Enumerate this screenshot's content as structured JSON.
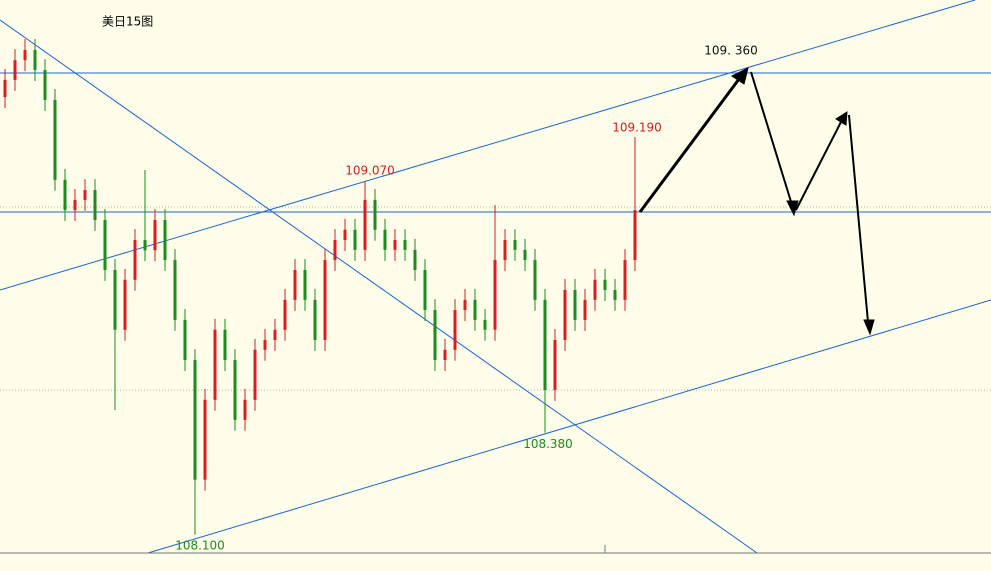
{
  "chart_data": {
    "type": "candlestick",
    "title": "美日15图",
    "ylim": [
      108.05,
      109.566
    ],
    "up_color": "#d42020",
    "down_color": "#1f8a1f",
    "open": [
      109.3,
      109.347,
      109.401,
      109.429,
      109.374,
      109.292,
      109.073,
      108.99,
      109.018,
      109.045,
      108.963,
      108.826,
      108.662,
      108.799,
      108.908,
      108.88,
      108.963,
      108.853,
      108.689,
      108.579,
      108.251,
      108.47,
      108.662,
      108.579,
      108.415,
      108.47,
      108.607,
      108.634,
      108.662,
      108.744,
      108.826,
      108.744,
      108.634,
      108.853,
      108.908,
      108.936,
      108.881,
      109.018,
      108.936,
      108.881,
      108.908,
      108.881,
      108.826,
      108.716,
      108.579,
      108.607,
      108.716,
      108.744,
      108.689,
      108.662,
      108.853,
      108.908,
      108.881,
      108.853,
      108.744,
      108.497,
      108.634,
      108.771,
      108.689,
      108.744,
      108.799,
      108.771,
      108.744,
      108.853
    ],
    "high": [
      109.377,
      109.431,
      109.459,
      109.459,
      109.404,
      109.322,
      109.103,
      109.048,
      109.075,
      109.075,
      108.993,
      108.856,
      108.829,
      108.938,
      109.1,
      108.993,
      108.993,
      108.883,
      108.719,
      108.609,
      108.5,
      108.692,
      108.692,
      108.609,
      108.5,
      108.637,
      108.664,
      108.692,
      108.774,
      108.856,
      108.856,
      108.774,
      108.883,
      108.938,
      108.966,
      108.966,
      109.07,
      109.048,
      108.966,
      108.938,
      108.938,
      108.911,
      108.856,
      108.746,
      108.637,
      108.746,
      108.774,
      108.774,
      108.719,
      109.004,
      108.938,
      108.938,
      108.911,
      108.883,
      108.774,
      108.664,
      108.801,
      108.801,
      108.774,
      108.829,
      108.829,
      108.801,
      108.883,
      109.19
    ],
    "low": [
      109.27,
      109.317,
      109.371,
      109.344,
      109.262,
      109.043,
      108.96,
      108.96,
      108.988,
      108.933,
      108.796,
      108.442,
      108.632,
      108.769,
      108.85,
      108.85,
      108.823,
      108.659,
      108.549,
      108.1,
      108.221,
      108.44,
      108.549,
      108.385,
      108.385,
      108.44,
      108.577,
      108.604,
      108.632,
      108.714,
      108.714,
      108.604,
      108.604,
      108.823,
      108.878,
      108.851,
      108.851,
      108.906,
      108.851,
      108.851,
      108.851,
      108.796,
      108.686,
      108.549,
      108.549,
      108.577,
      108.686,
      108.659,
      108.632,
      108.632,
      108.823,
      108.851,
      108.823,
      108.714,
      108.38,
      108.467,
      108.604,
      108.659,
      108.659,
      108.714,
      108.741,
      108.714,
      108.714,
      108.823
    ],
    "close": [
      109.347,
      109.401,
      109.429,
      109.374,
      109.292,
      109.073,
      108.99,
      109.018,
      109.045,
      108.963,
      108.826,
      108.662,
      108.799,
      108.908,
      108.88,
      108.963,
      108.853,
      108.689,
      108.579,
      108.251,
      108.47,
      108.662,
      108.579,
      108.415,
      108.47,
      108.607,
      108.634,
      108.662,
      108.744,
      108.826,
      108.744,
      108.634,
      108.853,
      108.908,
      108.936,
      108.881,
      109.018,
      108.936,
      108.881,
      108.908,
      108.881,
      108.826,
      108.716,
      108.579,
      108.607,
      108.716,
      108.744,
      108.689,
      108.662,
      108.853,
      108.908,
      108.881,
      108.853,
      108.744,
      108.497,
      108.634,
      108.771,
      108.689,
      108.744,
      108.799,
      108.771,
      108.744,
      108.853,
      108.99
    ],
    "annotations": [
      {
        "label": "108.100",
        "value": 108.1,
        "color": "#1f8a1f"
      },
      {
        "label": "109.070",
        "value": 109.07,
        "color": "#d42020"
      },
      {
        "label": "108.380",
        "value": 108.38,
        "color": "#1f8a1f"
      },
      {
        "label": "109.190",
        "value": 109.19,
        "color": "#d42020"
      },
      {
        "label": "109. 360",
        "value": 109.36,
        "color": "#111111"
      }
    ]
  }
}
